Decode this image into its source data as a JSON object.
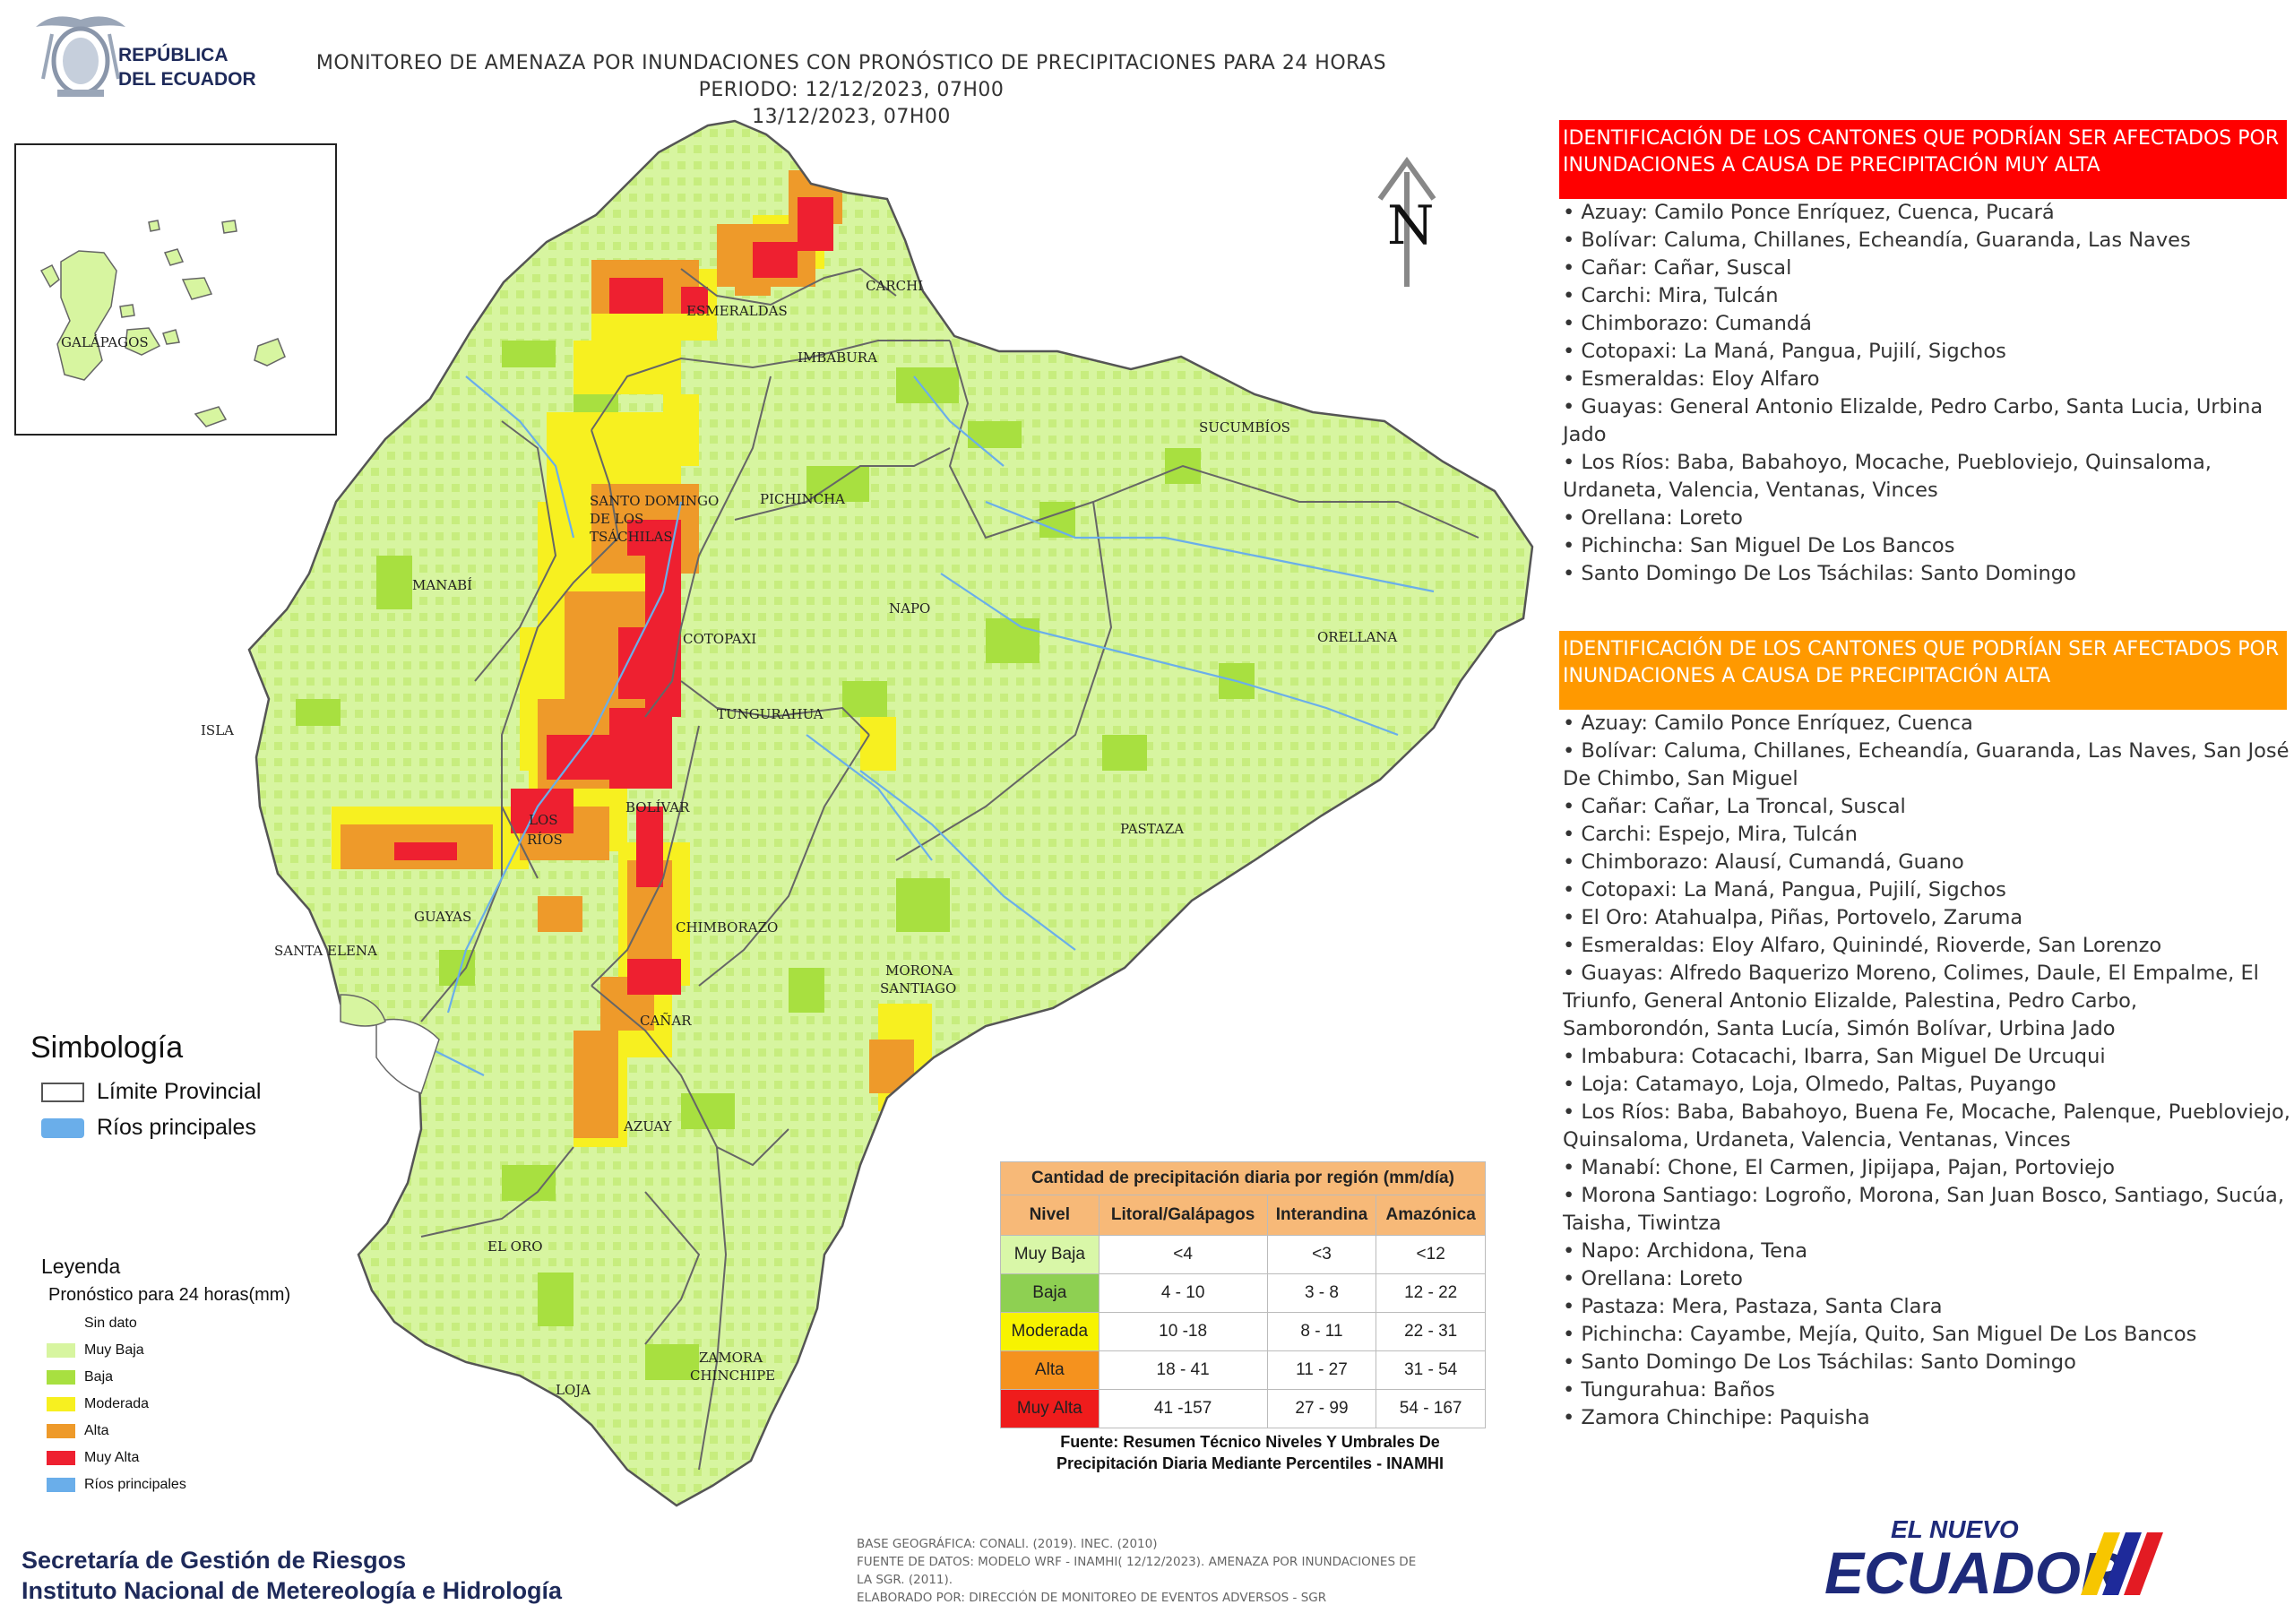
{
  "header": {
    "logo_line1": "REPÚBLICA",
    "logo_line2": "DEL ECUADOR",
    "title_line1": "MONITOREO DE AMENAZA POR INUNDACIONES  CON PRONÓSTICO DE  PRECIPITACIONES PARA 24 HORAS  PERIODO: 12/12/2023, 07H00",
    "title_line2": "13/12/2023, 07H00"
  },
  "map": {
    "north_label": "N",
    "inset_label": "GALÁPAGOS",
    "provinces": [
      "ESMERALDAS",
      "CARCHI",
      "IMBABURA",
      "SUCUMBÍOS",
      "SANTO DOMINGO",
      "DE LOS",
      "TSÁCHILAS",
      "PICHINCHA",
      "MANABÍ",
      "NAPO",
      "ORELLANA",
      "COTOPAXI",
      "TUNGURAHUA",
      "ISLA",
      "BOLÍVAR",
      "LOS",
      "RÍOS",
      "PASTAZA",
      "GUAYAS",
      "SANTA ELENA",
      "CHIMBORAZO",
      "MORONA",
      "SANTIAGO",
      "CAÑAR",
      "AZUAY",
      "EL ORO",
      "ZAMORA",
      "CHINCHIPE",
      "LOJA"
    ],
    "colors": {
      "muy_baja": "#d7f5a0",
      "baja": "#a8e040",
      "moderada": "#f7f020",
      "alta": "#ee9a2a",
      "muy_alta": "#ee2030",
      "rios": "#6aaeea",
      "limite": "#666666"
    }
  },
  "panel_red": {
    "heading": "IDENTIFICACIÓN DE LOS CANTONES QUE PODRÍAN SER AFECTADOS POR INUNDACIONES  A CAUSA DE PRECIPITACIÓN MUY ALTA",
    "items": [
      "• Azuay: Camilo Ponce Enríquez, Cuenca, Pucará",
      "• Bolívar: Caluma, Chillanes, Echeandía, Guaranda, Las Naves",
      "• Cañar: Cañar, Suscal",
      "• Carchi: Mira, Tulcán",
      "• Chimborazo: Cumandá",
      "• Cotopaxi: La Maná, Pangua, Pujilí, Sigchos",
      "• Esmeraldas: Eloy Alfaro",
      "• Guayas: General Antonio Elizalde, Pedro Carbo, Santa Lucia, Urbina Jado",
      "• Los Ríos: Baba, Babahoyo, Mocache, Puebloviejo, Quinsaloma, Urdaneta, Valencia, Ventanas, Vinces",
      "• Orellana: Loreto",
      "• Pichincha: San Miguel De Los Bancos",
      "• Santo Domingo De Los Tsáchilas: Santo Domingo"
    ]
  },
  "panel_orange": {
    "heading": "IDENTIFICACIÓN DE LOS CANTONES QUE  PODRÍAN SER AFECTADOS POR INUNDACIONES  A CAUSA DE PRECIPITACIÓN  ALTA",
    "items": [
      "• Azuay: Camilo Ponce Enríquez, Cuenca",
      "• Bolívar: Caluma, Chillanes, Echeandía, Guaranda, Las Naves, San José De Chimbo, San Miguel",
      "• Cañar: Cañar, La Troncal, Suscal",
      "• Carchi: Espejo, Mira, Tulcán",
      "• Chimborazo: Alausí, Cumandá, Guano",
      "• Cotopaxi: La Maná, Pangua, Pujilí, Sigchos",
      "• El Oro: Atahualpa, Piñas, Portovelo, Zaruma",
      "• Esmeraldas: Eloy Alfaro, Quinindé, Rioverde, San Lorenzo",
      "• Guayas: Alfredo Baquerizo Moreno, Colimes, Daule, El Empalme, El Triunfo, General Antonio Elizalde, Palestina, Pedro Carbo, Samborondón, Santa Lucía, Simón Bolívar, Urbina Jado",
      "• Imbabura: Cotacachi, Ibarra, San Miguel De Urcuqui",
      "• Loja: Catamayo, Loja, Olmedo, Paltas, Puyango",
      "• Los Ríos: Baba, Babahoyo, Buena Fe, Mocache, Palenque, Puebloviejo, Quinsaloma, Urdaneta, Valencia, Ventanas, Vinces",
      "• Manabí: Chone, El Carmen, Jipijapa, Pajan, Portoviejo",
      "• Morona Santiago: Logroño, Morona, San Juan Bosco, Santiago, Sucúa, Taisha, Tiwintza",
      "• Napo: Archidona, Tena",
      "• Orellana: Loreto",
      "• Pastaza: Mera, Pastaza, Santa Clara",
      "• Pichincha: Cayambe, Mejía, Quito, San Miguel De Los Bancos",
      "• Santo Domingo De Los Tsáchilas: Santo Domingo",
      "• Tungurahua: Baños",
      "• Zamora Chinchipe: Paquisha"
    ]
  },
  "symbology": {
    "title": "Simbología",
    "limite": "Límite Provincial",
    "rios": "Ríos principales"
  },
  "legend": {
    "title": "Leyenda",
    "subtitle": "Pronóstico para 24 horas(mm)",
    "items": [
      {
        "label": "Sin dato",
        "color": "#ffffff"
      },
      {
        "label": "Muy Baja",
        "color": "#d7f5a0"
      },
      {
        "label": "Baja",
        "color": "#a8e040"
      },
      {
        "label": "Moderada",
        "color": "#f7f020"
      },
      {
        "label": "Alta",
        "color": "#ee9a2a"
      },
      {
        "label": "Muy Alta",
        "color": "#ee2030"
      },
      {
        "label": "Ríos principales",
        "color": "#6aaeea"
      }
    ]
  },
  "table": {
    "title": "Cantidad de precipitación diaria por región (mm/día)",
    "headers": [
      "Nivel",
      "Litoral/Galápagos",
      "Interandina",
      "Amazónica"
    ],
    "rows": [
      {
        "nivel": "Muy Baja",
        "color": "#d9f7a8",
        "litoral": "<4",
        "interandina": "<3",
        "amazonica": "<12"
      },
      {
        "nivel": "Baja",
        "color": "#8ed052",
        "litoral": "4 - 10",
        "interandina": "3 - 8",
        "amazonica": "12 - 22"
      },
      {
        "nivel": "Moderada",
        "color": "#f7f300",
        "litoral": "10 -18",
        "interandina": "8 - 11",
        "amazonica": "22 - 31"
      },
      {
        "nivel": "Alta",
        "color": "#f5921e",
        "litoral": "18 - 41",
        "interandina": "11 - 27",
        "amazonica": "31 - 54"
      },
      {
        "nivel": "Muy Alta",
        "color": "#ef1c1c",
        "litoral": "41 -157",
        "interandina": "27 - 99",
        "amazonica": "54 - 167"
      }
    ],
    "source_line1": "Fuente: Resumen Técnico Niveles Y Umbrales De",
    "source_line2": "Precipitación Diaria Mediante Percentiles - INAMHI"
  },
  "footer": {
    "org_line1": "Secretaría de Gestión de Riesgos",
    "org_line2": "Instituto Nacional de Metereología e Hidrología",
    "credit1": "BASE GEOGRÁFICA: CONALI. (2019). INEC. (2010)",
    "credit2": "FUENTE DE DATOS: MODELO WRF - INAMHI( 12/12/2023).  AMENAZA POR INUNDACIONES DE",
    "credit3": "LA SGR. (2011).",
    "credit4": "ELABORADO POR: DIRECCIÓN DE MONITOREO DE EVENTOS ADVERSOS - SGR",
    "brand_top": "EL NUEVO",
    "brand_main": "ECUADOR"
  }
}
